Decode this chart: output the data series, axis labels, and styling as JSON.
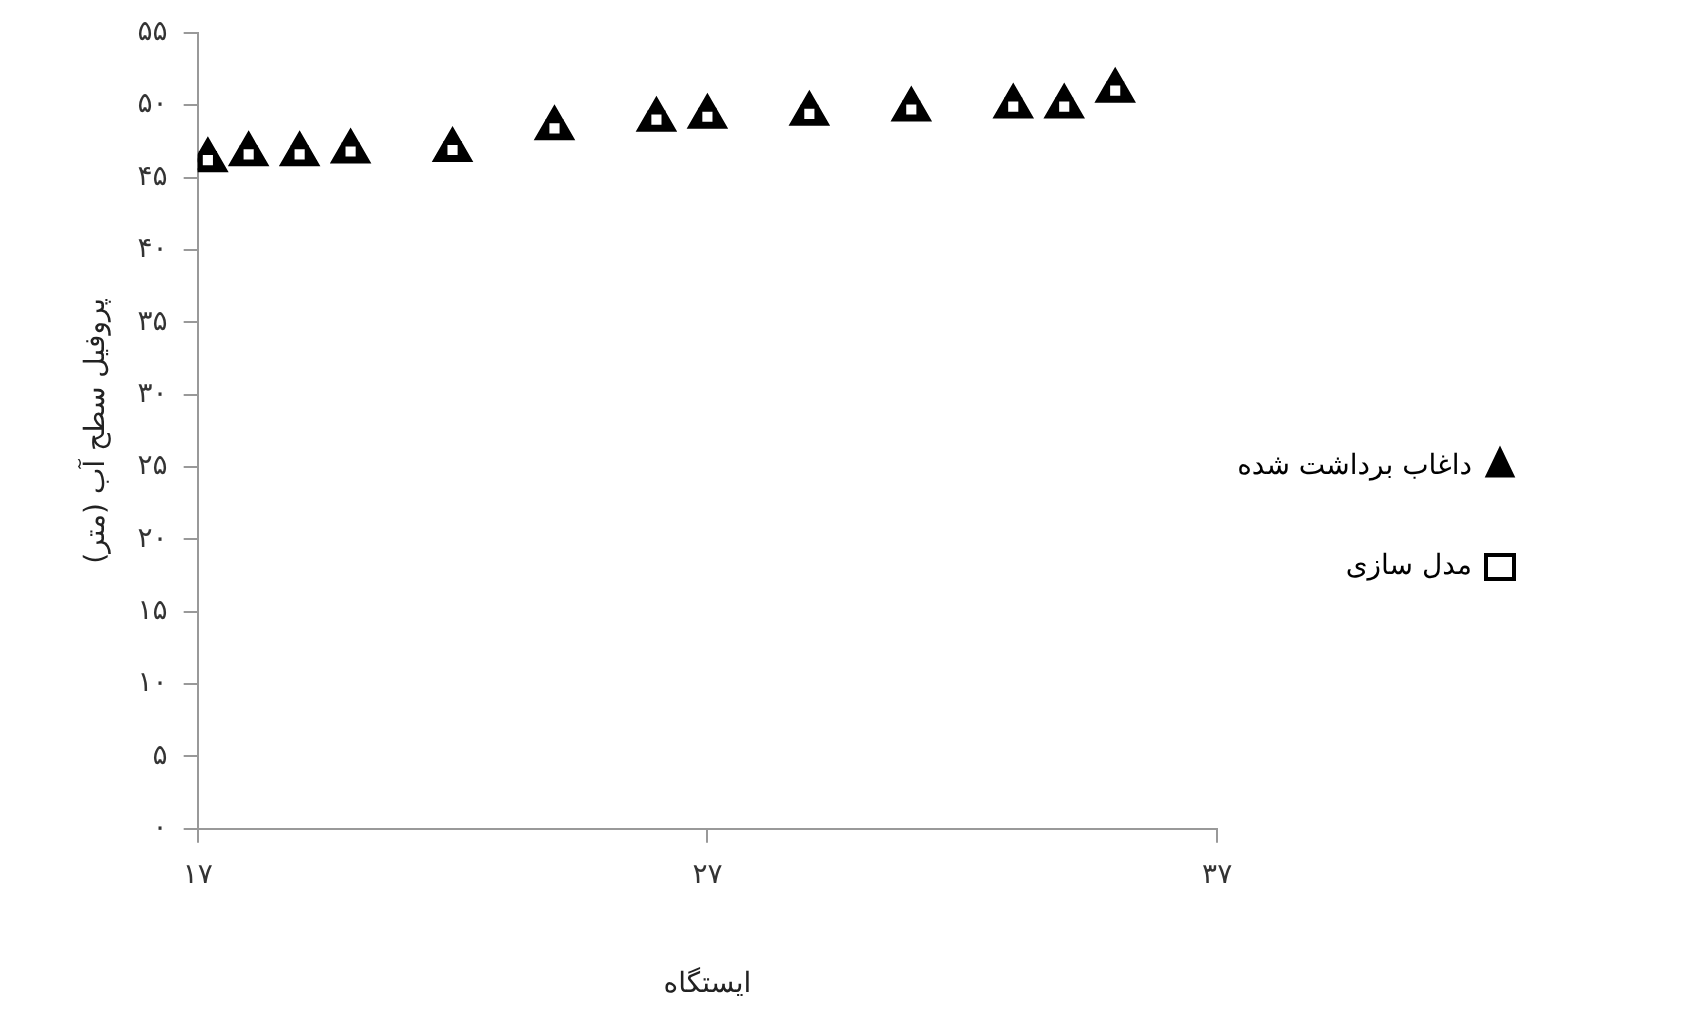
{
  "chart_data": {
    "type": "scatter",
    "xlabel": "ایستگاه",
    "ylabel": "پروفیل سطح آب (متر)",
    "xlim": [
      17,
      37
    ],
    "xticks": [
      {
        "value": 17,
        "label": "۱۷"
      },
      {
        "value": 27,
        "label": "۲۷"
      },
      {
        "value": 37,
        "label": "۳۷"
      }
    ],
    "ylim": [
      0,
      55
    ],
    "yticks": [
      {
        "value": 0,
        "label": "۰"
      },
      {
        "value": 5,
        "label": "۵"
      },
      {
        "value": 10,
        "label": "۱۰"
      },
      {
        "value": 15,
        "label": "۱۵"
      },
      {
        "value": 20,
        "label": "۲۰"
      },
      {
        "value": 25,
        "label": "۲۵"
      },
      {
        "value": 30,
        "label": "۳۰"
      },
      {
        "value": 35,
        "label": "۳۵"
      },
      {
        "value": 40,
        "label": "۴۰"
      },
      {
        "value": 45,
        "label": "۴۵"
      },
      {
        "value": 50,
        "label": "۵۰"
      },
      {
        "value": 55,
        "label": "۵۵"
      }
    ],
    "grid": false,
    "legend": "right",
    "series": [
      {
        "name": "داغاب برداشت شده",
        "color": "#000000",
        "marker": "triangle",
        "x": [
          17.2,
          18,
          19,
          20,
          22,
          24,
          26,
          27,
          29,
          31,
          33,
          34,
          35
        ],
        "values": [
          46.2,
          46.6,
          46.6,
          46.8,
          46.9,
          48.4,
          49,
          49.2,
          49.4,
          49.7,
          49.9,
          49.9,
          51
        ]
      },
      {
        "name": "مدل سازی",
        "color": "#000000",
        "marker": "square",
        "x": [
          17.2,
          18,
          19,
          20,
          22,
          24,
          26,
          27,
          29,
          31,
          33,
          34,
          35
        ],
        "values": [
          46.2,
          46.6,
          46.6,
          46.8,
          46.9,
          48.4,
          49,
          49.2,
          49.4,
          49.7,
          49.9,
          49.9,
          51
        ]
      }
    ]
  }
}
